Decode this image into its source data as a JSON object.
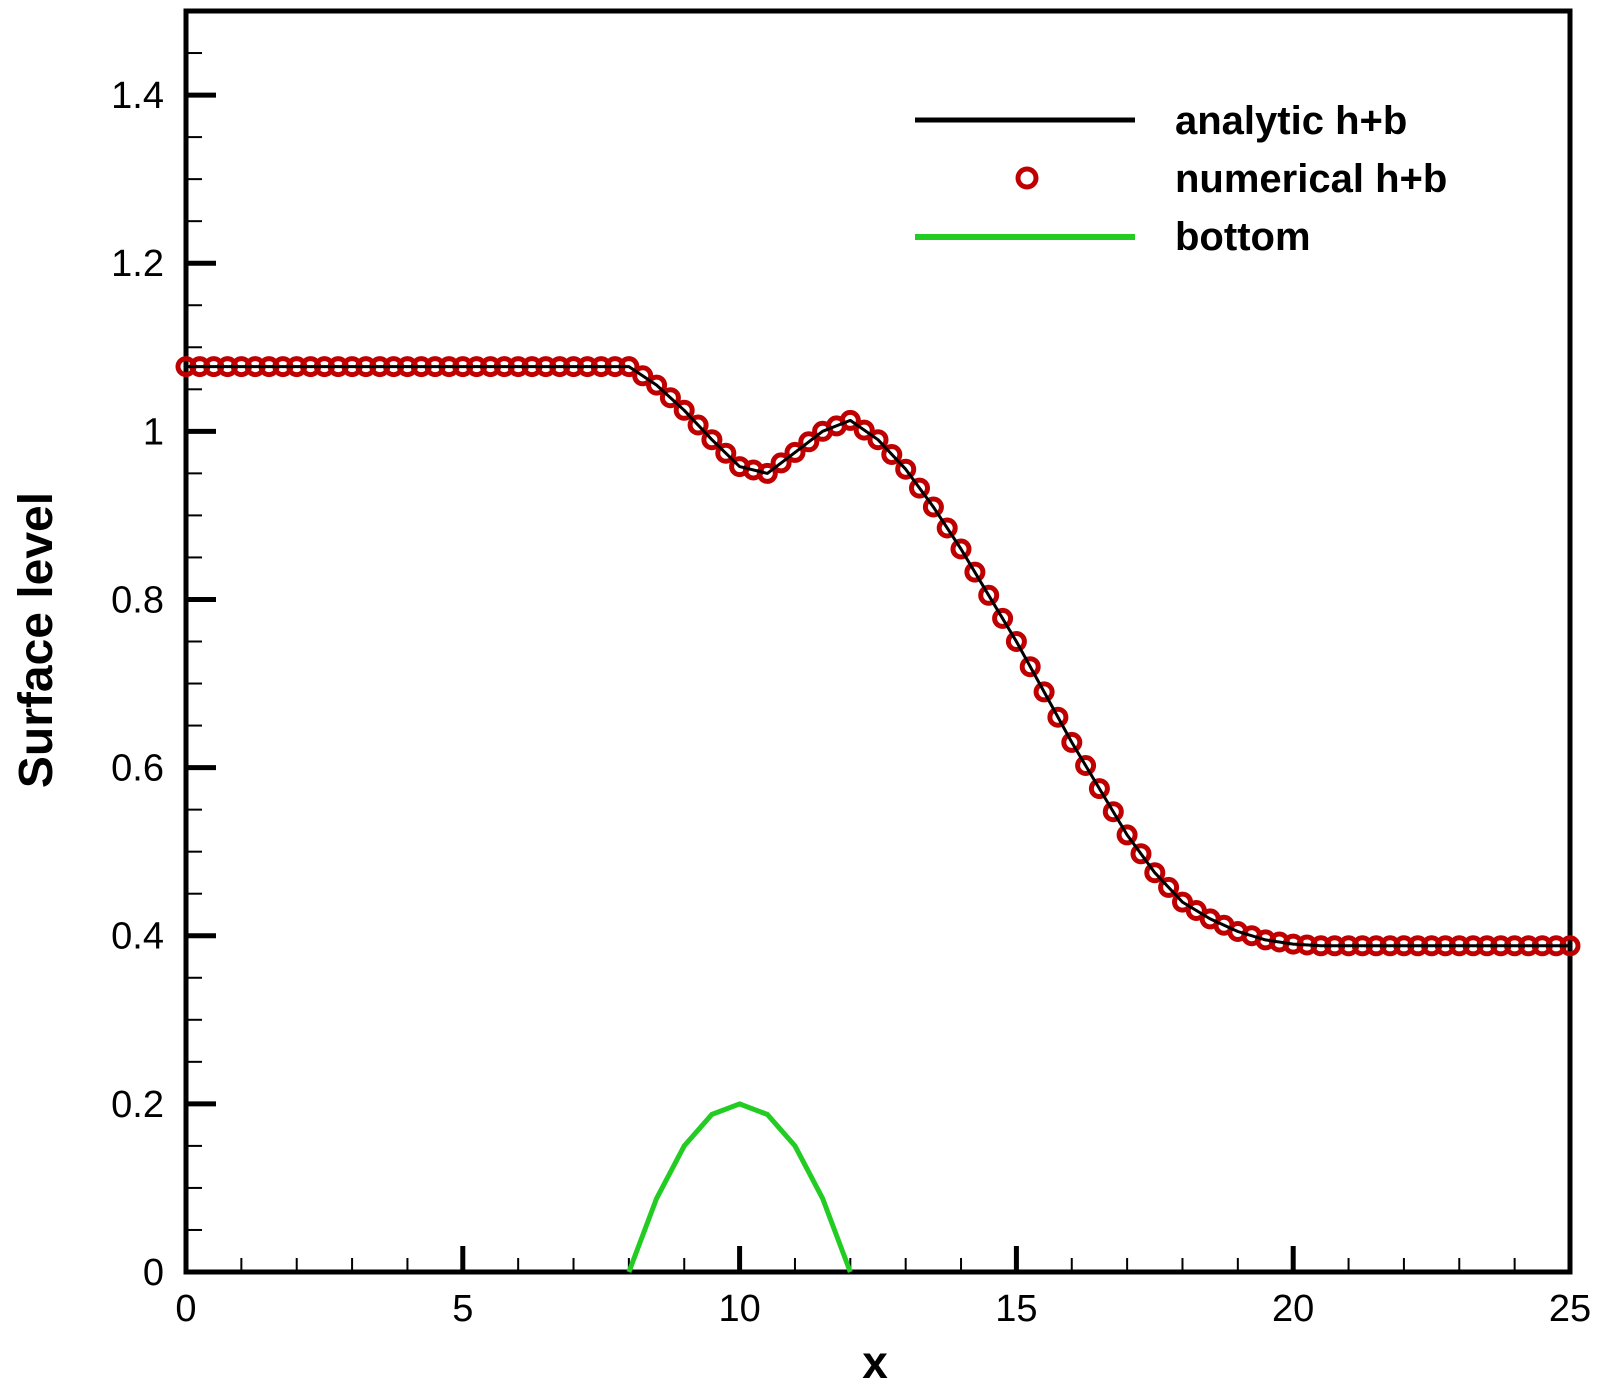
{
  "chart_data": {
    "type": "line",
    "title": "",
    "xlabel": "x",
    "ylabel": "Surface level",
    "xlim": [
      0,
      25
    ],
    "ylim": [
      0,
      1.5
    ],
    "x_ticks": [
      "0",
      "5",
      "10",
      "15",
      "20",
      "25"
    ],
    "y_ticks": [
      "0",
      "0.2",
      "0.4",
      "0.6",
      "0.8",
      "1",
      "1.2",
      "1.4"
    ],
    "grid": false,
    "legend_position": "top-right",
    "colors": {
      "analytic": "#000000",
      "numerical": "#c00000",
      "bottom": "#22cc22"
    },
    "series": [
      {
        "name": "analytic h+b",
        "style": "line",
        "x": [
          0,
          8,
          8.5,
          9,
          9.5,
          10,
          10.5,
          11,
          11.5,
          12,
          12.5,
          13,
          13.5,
          14,
          14.5,
          15,
          15.5,
          16,
          16.5,
          17,
          17.5,
          18,
          18.5,
          19,
          19.5,
          20,
          20.5,
          21,
          21.2,
          22,
          23,
          24,
          25
        ],
        "y": [
          1.077,
          1.077,
          1.055,
          1.025,
          0.99,
          0.958,
          0.95,
          0.975,
          1.0,
          1.013,
          0.99,
          0.955,
          0.91,
          0.86,
          0.805,
          0.75,
          0.69,
          0.63,
          0.575,
          0.52,
          0.475,
          0.44,
          0.42,
          0.405,
          0.395,
          0.39,
          0.388,
          0.388,
          0.388,
          0.388,
          0.388,
          0.388,
          0.388
        ]
      },
      {
        "name": "numerical h+b",
        "style": "markers"
      },
      {
        "name": "bottom",
        "style": "line",
        "x": [
          8,
          8.5,
          9,
          9.5,
          10,
          10.5,
          11,
          11.5,
          12
        ],
        "y": [
          0,
          0.0875,
          0.15,
          0.1875,
          0.2,
          0.1875,
          0.15,
          0.0875,
          0
        ]
      }
    ]
  }
}
